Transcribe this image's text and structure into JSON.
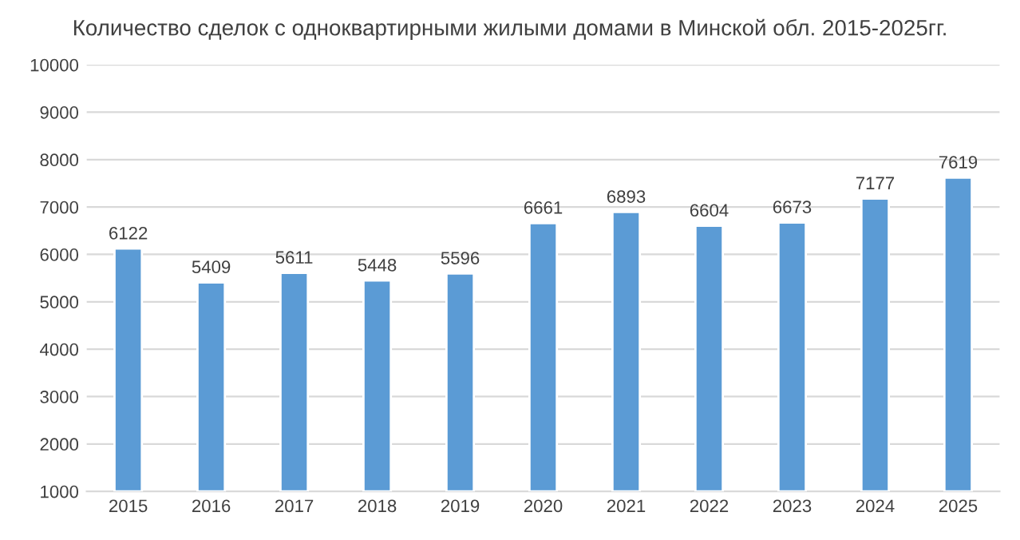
{
  "chart_data": {
    "type": "bar",
    "title": "Количество сделок с одноквартирными жилыми домами в Минской обл. 2015-2025гг.",
    "categories": [
      "2015",
      "2016",
      "2017",
      "2018",
      "2019",
      "2020",
      "2021",
      "2022",
      "2023",
      "2024",
      "2025"
    ],
    "values": [
      6122,
      5409,
      5611,
      5448,
      5596,
      6661,
      6893,
      6604,
      6673,
      7177,
      7619
    ],
    "color": "#5b9bd5",
    "ylim": [
      1000,
      10000
    ],
    "yticks": [
      1000,
      2000,
      3000,
      4000,
      5000,
      6000,
      7000,
      8000,
      9000,
      10000
    ],
    "grid": "y",
    "data_labels": true
  }
}
